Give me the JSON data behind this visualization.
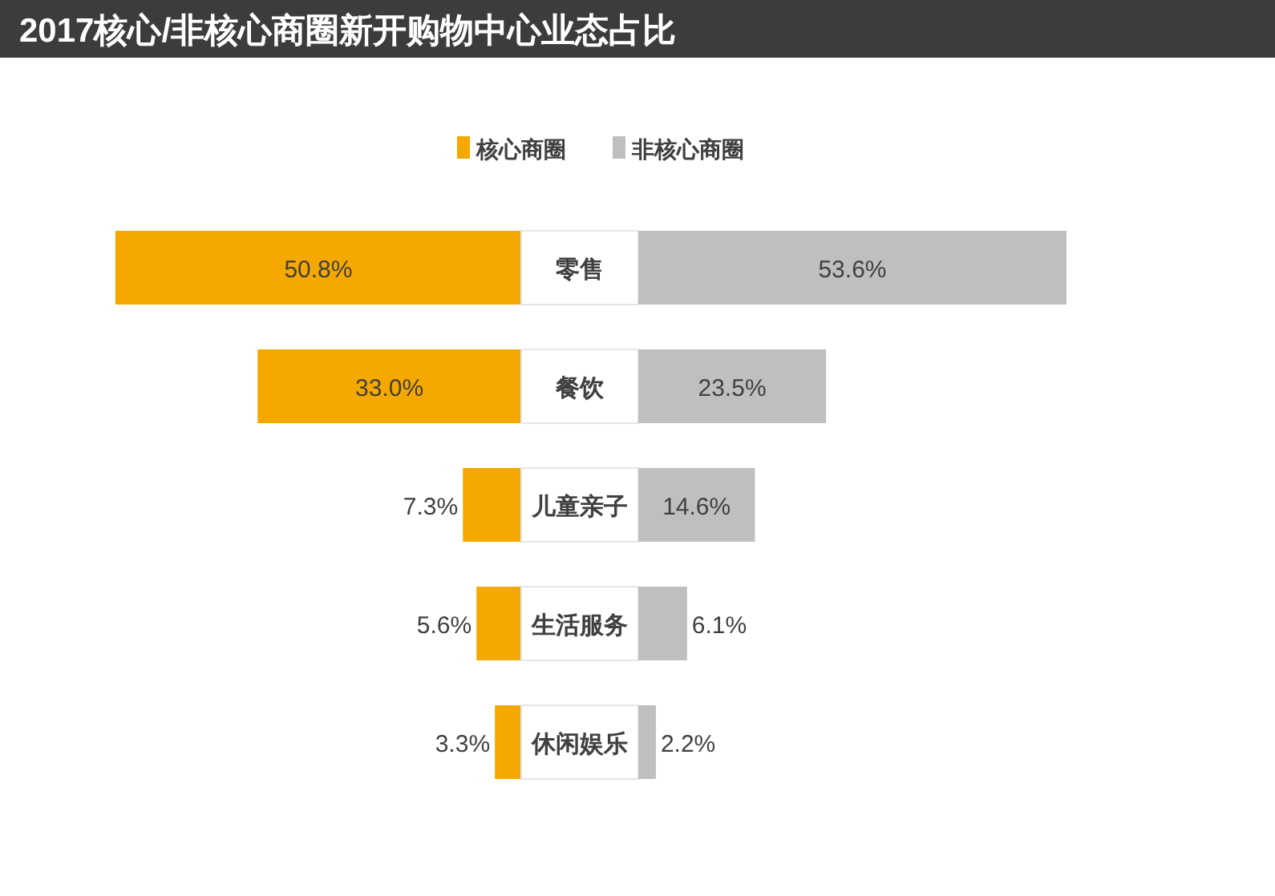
{
  "chart_data": [
    {
      "type": "bar",
      "orientation": "horizontal",
      "title": "2017核心/非核心商圈新开购物中心业态占比",
      "legend": "top",
      "categories": [
        "零售",
        "餐饮",
        "儿童亲子",
        "生活服务",
        "休闲娱乐"
      ],
      "series": [
        {
          "name": "核心商圈",
          "color": "#f5a800",
          "values": [
            50.8,
            33.0,
            7.3,
            5.6,
            3.3
          ],
          "value_labels": [
            "50.8%",
            "33.0%",
            "7.3%",
            "5.6%",
            "3.3%"
          ]
        }
      ]
    },
    {
      "type": "bar",
      "orientation": "horizontal",
      "legend": "top",
      "categories": [
        null,
        null,
        null,
        null,
        null
      ],
      "series": [
        {
          "name": "非核心商圈",
          "color": "#bfbfbf",
          "values": [
            53.6,
            23.5,
            14.6,
            6.1,
            2.2
          ],
          "value_labels": [
            "53.6%",
            "23.5%",
            "14.6%",
            "6.1%",
            "2.2%"
          ]
        }
      ]
    }
  ]
}
